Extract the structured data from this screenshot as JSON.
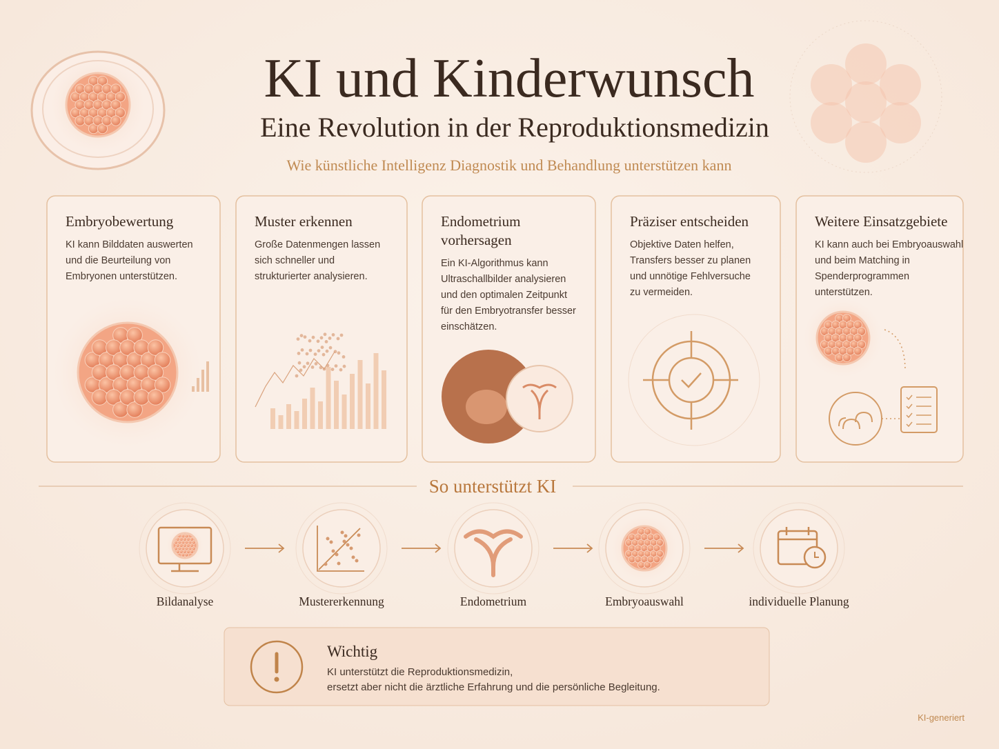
{
  "header": {
    "title": "KI und Kinderwunsch",
    "subtitle": "Eine Revolution in der Reproduktionsmedizin",
    "tagline": "Wie künstliche Intelligenz Diagnostik und Behandlung unterstützen kann"
  },
  "cards": [
    {
      "title": [
        "Embryobewertung"
      ],
      "lines": [
        "KI kann Bilddaten auswerten",
        "und die Beurteilung von",
        "Embryonen unterstützen."
      ]
    },
    {
      "title": [
        "Muster erkennen"
      ],
      "lines": [
        "Große Datenmengen lassen",
        "sich schneller und",
        "strukturierter analysieren."
      ]
    },
    {
      "title": [
        "Endometrium",
        "vorhersagen"
      ],
      "lines": [
        "Ein KI-Algorithmus kann",
        "Ultraschallbilder analysieren",
        "und den optimalen Zeitpunkt",
        "für den Embryotransfer besser",
        "einschätzen."
      ]
    },
    {
      "title": [
        "Präziser entscheiden"
      ],
      "lines": [
        "Objektive Daten helfen,",
        "Transfers besser zu planen",
        "und unnötige Fehlversuche",
        "zu vermeiden."
      ]
    },
    {
      "title": [
        "Weitere Einsatzgebiete"
      ],
      "lines": [
        "KI kann auch bei Embryoauswahl",
        "und beim Matching in",
        "Spenderprogrammen",
        "unterstützen."
      ]
    }
  ],
  "process": {
    "heading": "So unterstützt KI",
    "steps": [
      "Bildanalyse",
      "Mustererkennung",
      "Endometrium",
      "Embryoauswahl",
      "individuelle Planung"
    ]
  },
  "notice": {
    "title": "Wichtig",
    "lines": [
      "KI unterstützt die Reproduktionsmedizin,",
      "ersetzt aber nicht die ärztliche Erfahrung und die persönliche Begleitung."
    ]
  },
  "footer": {
    "note": "KI-generiert"
  }
}
